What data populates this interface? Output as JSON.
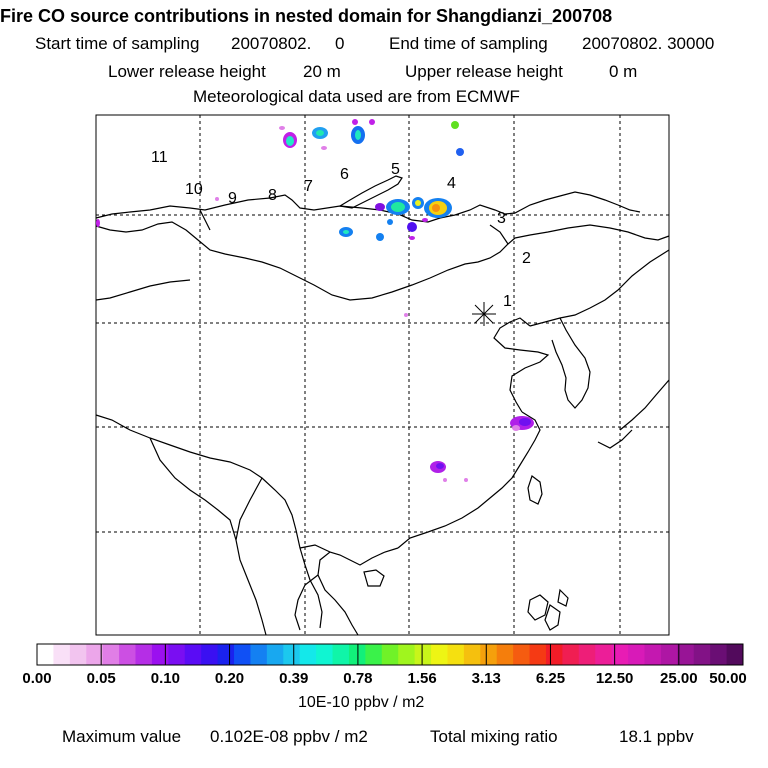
{
  "title": "Fire CO source contributions in nested domain for Shangdianzi_200708",
  "sampling": {
    "start_label": "Start time of sampling",
    "start_value": "20070802.     0",
    "end_label": "End time of sampling",
    "end_value": "20070802. 30000"
  },
  "release": {
    "lower_label": "Lower release height",
    "lower_value": "20 m",
    "upper_label": "Upper release height",
    "upper_value": "0 m"
  },
  "meteo_note": "Meteorological data used are from ECMWF",
  "trajectory_labels": [
    "1",
    "2",
    "3",
    "4",
    "5",
    "6",
    "7",
    "8",
    "9",
    "10",
    "11"
  ],
  "station_marker": "receptor-asterisk",
  "colorbar": {
    "ticks": [
      "0.00",
      "0.05",
      "0.10",
      "0.20",
      "0.39",
      "0.78",
      "1.56",
      "3.13",
      "6.25",
      "12.50",
      "25.00",
      "50.00"
    ],
    "colors": [
      "#ffffff",
      "#f9e0f7",
      "#f2c4ef",
      "#eca6ea",
      "#e07ee6",
      "#cc4fe3",
      "#b52ee6",
      "#9b10ef",
      "#7a0ef2",
      "#5a0cf5",
      "#3a10f2",
      "#1a22ee",
      "#1050f5",
      "#1480f2",
      "#18a8f0",
      "#1cc8ee",
      "#14e8ea",
      "#10f5d2",
      "#10f5a8",
      "#12f07a",
      "#3af24a",
      "#70f228",
      "#a0f51e",
      "#c8f51a",
      "#eef514",
      "#f5e010",
      "#f5c00e",
      "#f5a00c",
      "#f57e0c",
      "#f55c10",
      "#f53a14",
      "#f21c28",
      "#f01e52",
      "#ee1e78",
      "#ec1e98",
      "#e81cb4",
      "#d81ab8",
      "#c418b0",
      "#ae16a4",
      "#981496",
      "#821286",
      "#6a0e74",
      "#520a5c"
    ],
    "unit": "10E-10 ppbv / m2"
  },
  "footer": {
    "max_label": "Maximum value",
    "max_value": "0.102E-08 ppbv / m2",
    "total_label": "Total mixing ratio",
    "total_value": "18.1 ppbv"
  }
}
